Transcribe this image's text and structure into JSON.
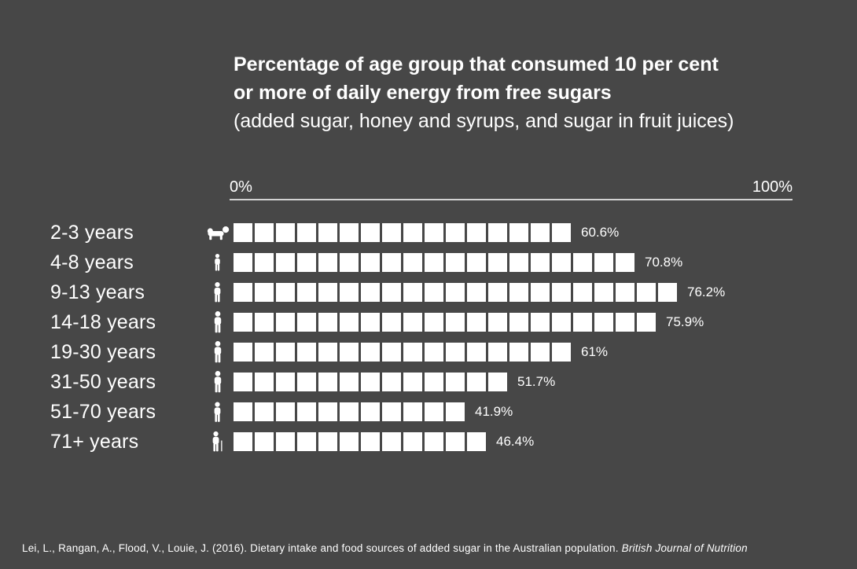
{
  "colors": {
    "background": "#474747",
    "foreground": "#ffffff",
    "axis_line": "#d2d2d2"
  },
  "title": {
    "line1": "Percentage of age group that consumed 10 per cent",
    "line2": "or more of daily energy from free sugars",
    "line3": "(added sugar, honey and syrups, and sugar in fruit juices)"
  },
  "axis": {
    "min_label": "0%",
    "max_label": "100%"
  },
  "rows": [
    {
      "label": "2-3 years",
      "icon": "baby-crawling",
      "squares": 16,
      "percent": "60.6%"
    },
    {
      "label": "4-8 years",
      "icon": "child",
      "squares": 19,
      "percent": "70.8%"
    },
    {
      "label": "9-13 years",
      "icon": "child",
      "squares": 21,
      "percent": "76.2%"
    },
    {
      "label": "14-18 years",
      "icon": "teen",
      "squares": 20,
      "percent": "75.9%"
    },
    {
      "label": "19-30 years",
      "icon": "adult",
      "squares": 16,
      "percent": "61%"
    },
    {
      "label": "31-50 years",
      "icon": "adult",
      "squares": 13,
      "percent": "51.7%"
    },
    {
      "label": "51-70 years",
      "icon": "adult",
      "squares": 11,
      "percent": "41.9%"
    },
    {
      "label": "71+ years",
      "icon": "senior-with-cane",
      "squares": 12,
      "percent": "46.4%"
    }
  ],
  "citation": {
    "text": "Lei, L., Rangan, A., Flood, V., Louie, J. (2016). Dietary intake and food sources of added sugar in the Australian population. ",
    "journal": "British Journal of Nutrition"
  },
  "chart_data": {
    "type": "bar",
    "title": "Percentage of age group that consumed 10 per cent or more of daily energy from free sugars (added sugar, honey and syrups, and sugar in fruit juices)",
    "categories": [
      "2-3 years",
      "4-8 years",
      "9-13 years",
      "14-18 years",
      "19-30 years",
      "31-50 years",
      "51-70 years",
      "71+ years"
    ],
    "values": [
      60.6,
      70.8,
      76.2,
      75.9,
      61,
      51.7,
      41.9,
      46.4
    ],
    "value_labels": [
      "60.6%",
      "70.8%",
      "76.2%",
      "75.9%",
      "61%",
      "51.7%",
      "41.9%",
      "46.4%"
    ],
    "unit_squares_per_row": [
      16,
      19,
      21,
      20,
      16,
      13,
      11,
      12
    ],
    "xlabel": "",
    "ylabel": "",
    "xlim": [
      0,
      100
    ],
    "x_tick_labels": [
      "0%",
      "100%"
    ],
    "legend": false,
    "grid": false,
    "orientation": "horizontal",
    "style": "pictogram rows of white unit squares on dark background, one square is roughly 3.8 percentage points"
  }
}
